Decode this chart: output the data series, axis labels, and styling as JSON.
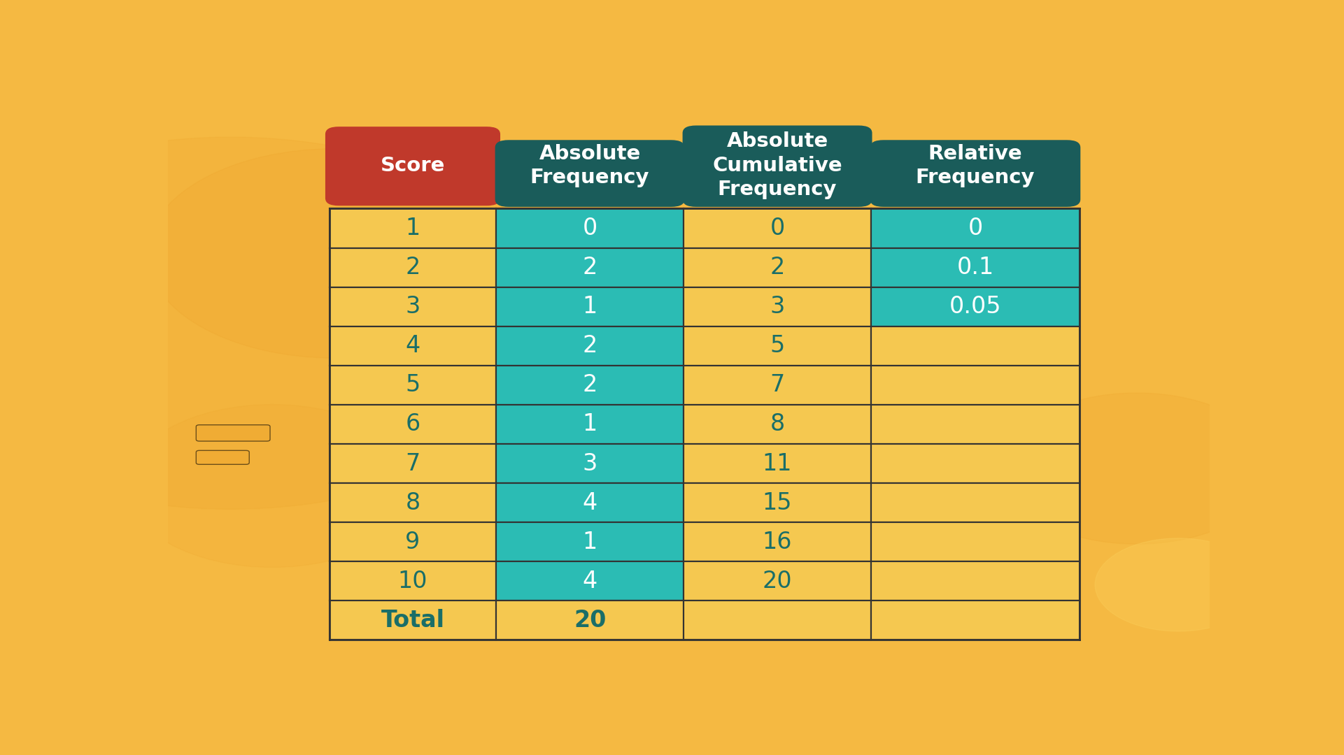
{
  "background_color": "#F5B942",
  "table_bg_yellow": "#F5C850",
  "table_bg_teal": "#2BBCB4",
  "header_dark_teal": "#1A5C5A",
  "header_score_red": "#C0392B",
  "text_dark_teal": "#1A6E68",
  "text_white": "#FFFFFF",
  "line_color": "#333333",
  "scores": [
    1,
    2,
    3,
    4,
    5,
    6,
    7,
    8,
    9,
    10
  ],
  "abs_freq": [
    0,
    2,
    1,
    2,
    2,
    1,
    3,
    4,
    1,
    4
  ],
  "abs_cum_freq": [
    0,
    2,
    3,
    5,
    7,
    8,
    11,
    15,
    16,
    20
  ],
  "rel_freq": [
    "0",
    "0.1",
    "0.05",
    "",
    "",
    "",
    "",
    "",
    "",
    ""
  ],
  "total_abs": "20",
  "col_headers": [
    "Score",
    "Absolute\nFrequency",
    "Absolute\nCumulative\nFrequency",
    "Relative\nFrequency"
  ],
  "col_header_colors": [
    "#C0392B",
    "#1A5C5A",
    "#1A5C5A",
    "#1A5C5A"
  ]
}
